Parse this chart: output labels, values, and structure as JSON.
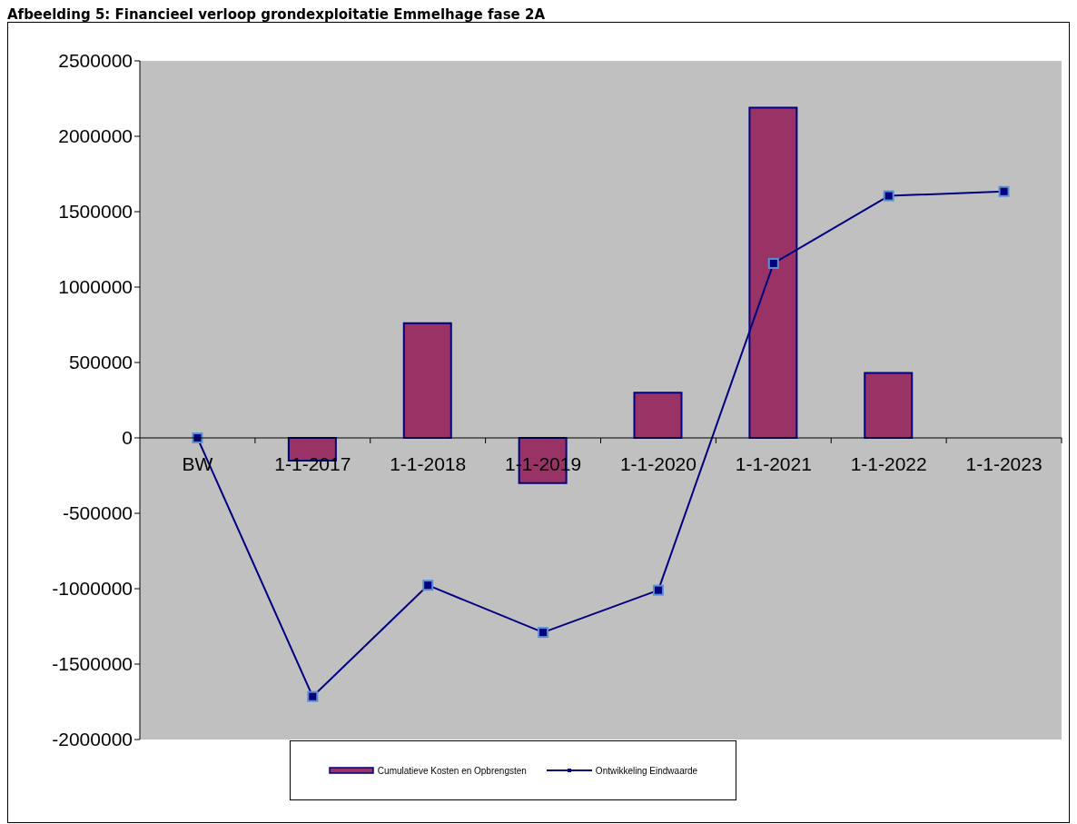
{
  "chart_data": {
    "type": "bar",
    "title": "Afbeelding 5: Financieel verloop grondexploitatie Emmelhage fase 2A",
    "categories": [
      "BW",
      "1-1-2017",
      "1-1-2018",
      "1-1-2019",
      "1-1-2020",
      "1-1-2021",
      "1-1-2022",
      "1-1-2023"
    ],
    "series": [
      {
        "name": "Cumulatieve Kosten en Opbrengsten",
        "color": "#993366",
        "values": [
          null,
          -150000,
          760000,
          -300000,
          300000,
          2190000,
          430000,
          null
        ]
      },
      {
        "name": "Ontwikkeling Eindwaarde",
        "type": "line",
        "color": "#000080",
        "values": [
          0,
          -1715000,
          -977000,
          -1290000,
          -1010000,
          1157000,
          1605000,
          1634000
        ]
      }
    ],
    "ylim": [
      -2000000,
      2500000
    ],
    "yticks": [
      -2000000,
      -1500000,
      -1000000,
      -500000,
      0,
      500000,
      1000000,
      1500000,
      2000000,
      2500000
    ],
    "grid": false,
    "legend": "bottom",
    "marker": "square",
    "line_style": "solid"
  }
}
